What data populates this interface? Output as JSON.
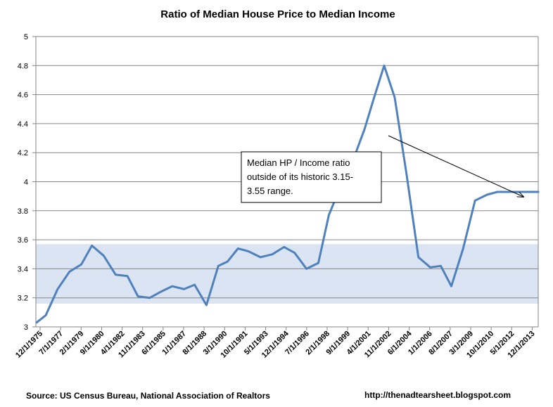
{
  "chart_data": {
    "type": "line",
    "title": "Ratio of Median House Price to Median Income",
    "xlabel": "",
    "ylabel": "",
    "ylim": [
      3,
      5
    ],
    "yticks": [
      "3",
      "3.2",
      "3.4",
      "3.6",
      "3.8",
      "4",
      "4.2",
      "4.4",
      "4.6",
      "4.8",
      "5"
    ],
    "grid": "horizontal",
    "legend": "none",
    "x_tick_labels": [
      "12/1/1975",
      "7/1/1977",
      "2/1/1979",
      "9/1/1980",
      "4/1/1982",
      "11/1/1983",
      "6/1/1985",
      "1/1/1987",
      "8/1/1988",
      "3/1/1990",
      "10/1/1991",
      "5/1/1993",
      "12/1/1994",
      "7/1/1996",
      "2/1/1998",
      "9/1/1999",
      "4/1/2001",
      "11/1/2002",
      "6/1/2004",
      "1/1/2006",
      "8/1/2007",
      "3/1/2009",
      "10/1/2010",
      "5/1/2012",
      "12/1/2013"
    ],
    "series": [
      {
        "color": "#4f81bd",
        "x": [
          1975.9,
          1976.6,
          1977.5,
          1978.4,
          1979.3,
          1980.1,
          1981.0,
          1981.9,
          1982.8,
          1983.6,
          1984.5,
          1985.3,
          1986.2,
          1987.1,
          1987.9,
          1988.8,
          1989.7,
          1990.4,
          1991.2,
          1992.0,
          1992.9,
          1993.8,
          1994.7,
          1995.5,
          1996.4,
          1997.3,
          1998.1,
          1999.0,
          1999.9,
          2000.8,
          2001.5,
          2002.3,
          2003.1,
          2004.0,
          2004.9,
          2005.8,
          2006.6,
          2007.4,
          2008.3,
          2009.2,
          2010.1,
          2010.9,
          2011.7,
          2012.6,
          2013.4,
          2014.0
        ],
        "values": [
          3.03,
          3.08,
          3.26,
          3.38,
          3.43,
          3.56,
          3.49,
          3.36,
          3.35,
          3.21,
          3.2,
          3.24,
          3.28,
          3.26,
          3.29,
          3.15,
          3.42,
          3.45,
          3.54,
          3.52,
          3.48,
          3.5,
          3.55,
          3.51,
          3.4,
          3.44,
          3.77,
          3.97,
          4.14,
          4.36,
          4.57,
          4.8,
          4.58,
          4.05,
          3.48,
          3.41,
          3.42,
          3.28,
          3.54,
          3.87,
          3.91,
          3.93,
          3.93,
          3.93,
          3.93,
          3.93
        ]
      }
    ],
    "band": {
      "from": 3.16,
      "to": 3.57,
      "color": "#dbe4f2"
    },
    "annotation": {
      "lines": [
        "Median HP / Income ratio",
        "outside of its historic 3.15-",
        "3.55 range."
      ]
    },
    "source": "Source:   US Census Bureau, National Association of Realtors",
    "url": "http://thenadtearsheet.blogspot.com"
  }
}
